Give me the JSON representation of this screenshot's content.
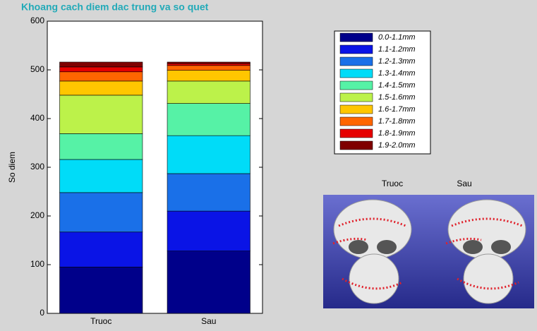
{
  "chart_data": {
    "type": "stacked_bar",
    "title": "Khoang cach diem dac trung va so quet",
    "ylabel": "So diem",
    "categories": [
      "Truoc",
      "Sau"
    ],
    "ylim": [
      0,
      600
    ],
    "yticks": [
      0,
      100,
      200,
      300,
      400,
      500,
      600
    ],
    "series": [
      {
        "name": "0.0-1.1mm",
        "color": "#00008a",
        "values": [
          95,
          128
        ]
      },
      {
        "name": "1.1-1.2mm",
        "color": "#0a14e6",
        "values": [
          72,
          82
        ]
      },
      {
        "name": "1.2-1.3mm",
        "color": "#1a70e8",
        "values": [
          81,
          77
        ]
      },
      {
        "name": "1.3-1.4mm",
        "color": "#00dcf8",
        "values": [
          68,
          78
        ]
      },
      {
        "name": "1.4-1.5mm",
        "color": "#56f2a6",
        "values": [
          53,
          66
        ]
      },
      {
        "name": "1.5-1.6mm",
        "color": "#bcf24a",
        "values": [
          79,
          46
        ]
      },
      {
        "name": "1.6-1.7mm",
        "color": "#ffc600",
        "values": [
          29,
          22
        ]
      },
      {
        "name": "1.7-1.8mm",
        "color": "#ff6600",
        "values": [
          19,
          10
        ]
      },
      {
        "name": "1.8-1.9mm",
        "color": "#e60000",
        "values": [
          10,
          4
        ]
      },
      {
        "name": "1.9-2.0mm",
        "color": "#7f0000",
        "values": [
          10,
          3
        ]
      }
    ]
  },
  "image_panel": {
    "labels": [
      "Truoc",
      "Sau"
    ]
  }
}
